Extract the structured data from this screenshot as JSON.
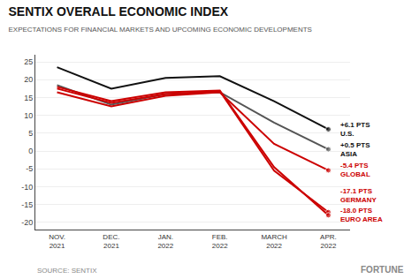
{
  "chart_data": {
    "type": "line",
    "title": "SENTIX OVERALL ECONOMIC INDEX",
    "subtitle": "EXPECTATIONS FOR FINANCIAL MARKETS AND UPCOMING ECONOMIC DEVELOPMENTS",
    "categories": [
      "NOV.\n2021",
      "DEC.\n2021",
      "JAN.\n2022",
      "FEB.\n2022",
      "MARCH\n2022",
      "APR.\n2022"
    ],
    "series": [
      {
        "name": "U.S.",
        "color": "#111111",
        "values": [
          23.5,
          17.5,
          20.5,
          21.0,
          14.0,
          6.1
        ]
      },
      {
        "name": "ASIA",
        "color": "#555555",
        "values": [
          18.5,
          13.0,
          16.0,
          16.5,
          8.0,
          0.5
        ]
      },
      {
        "name": "GLOBAL",
        "color": "#cc0000",
        "values": [
          16.5,
          12.5,
          15.5,
          16.5,
          2.0,
          -5.4
        ]
      },
      {
        "name": "GERMANY",
        "color": "#cc0000",
        "values": [
          17.5,
          13.5,
          16.0,
          16.8,
          -5.5,
          -17.1
        ]
      },
      {
        "name": "EURO AREA",
        "color": "#cc0000",
        "values": [
          18.0,
          14.0,
          16.5,
          17.0,
          -4.5,
          -18.0
        ]
      }
    ],
    "annotations": [
      {
        "text": "+6.1 PTS\nU.S.",
        "x": "APR.\n2022",
        "y": 6.1,
        "color": "#111111"
      },
      {
        "text": "+0.5 PTS\nASIA",
        "x": "APR.\n2022",
        "y": 0.5,
        "color": "#111111"
      },
      {
        "text": "-5.4 PTS\nGLOBAL",
        "x": "APR.\n2022",
        "y": -5.4,
        "color": "#cc0000"
      },
      {
        "text": "-17.1 PTS\nGERMANY",
        "x": "APR.\n2022",
        "y": -17.1,
        "color": "#cc0000"
      },
      {
        "text": "-18.0 PTS\nEURO AREA",
        "x": "APR.\n2022",
        "y": -18.0,
        "color": "#cc0000"
      }
    ],
    "ylim": [
      -22,
      27
    ],
    "yticks": [
      -20,
      -15,
      -10,
      -5,
      0,
      5,
      10,
      15,
      20,
      25
    ],
    "grid": true,
    "source": "SOURCE: SENTIX",
    "brand": "FORTUNE"
  }
}
